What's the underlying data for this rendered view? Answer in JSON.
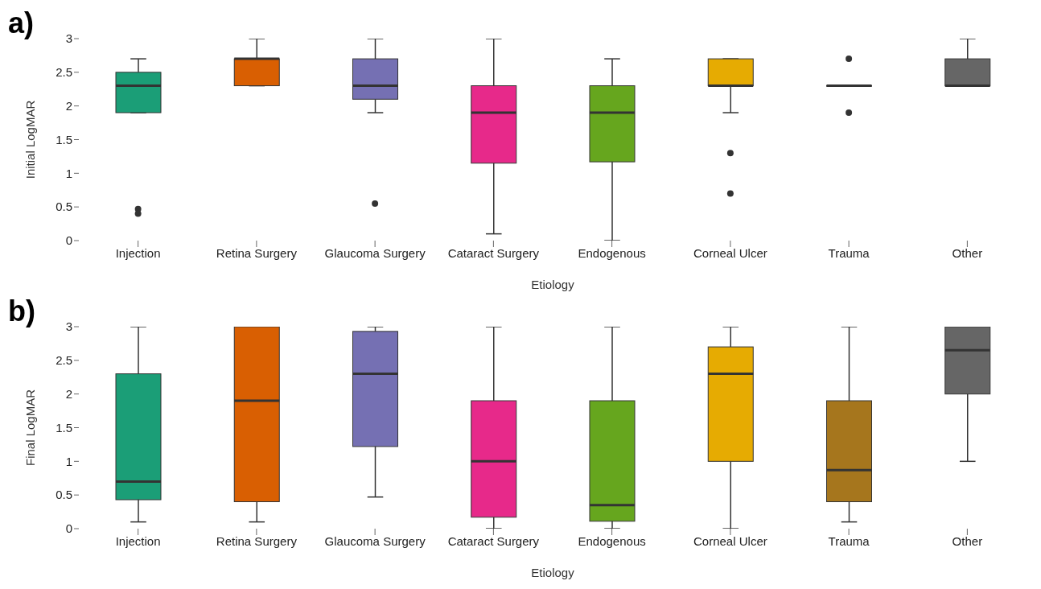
{
  "chart_data": [
    {
      "type": "box",
      "title": "a)",
      "xlabel": "Etiology",
      "ylabel": "Initial LogMAR",
      "categories": [
        "Injection",
        "Retina Surgery",
        "Glaucoma Surgery",
        "Cataract Surgery",
        "Endogenous",
        "Corneal Ulcer",
        "Trauma",
        "Other"
      ],
      "colors": [
        "#1b9e77",
        "#d95f02",
        "#7570b3",
        "#e7298a",
        "#66a61e",
        "#e6ab02",
        "#a6761d",
        "#666666"
      ],
      "ylim": [
        0,
        3
      ],
      "yticks": [
        0,
        0.5,
        1,
        1.5,
        2,
        2.5,
        3
      ],
      "boxes": [
        {
          "low": 1.9,
          "q1": 1.9,
          "median": 2.3,
          "q3": 2.5,
          "high": 2.7,
          "outliers": [
            0.47,
            0.4
          ]
        },
        {
          "low": 2.3,
          "q1": 2.3,
          "median": 2.7,
          "q3": 2.7,
          "high": 3
        },
        {
          "low": 1.9,
          "q1": 2.1,
          "median": 2.3,
          "q3": 2.7,
          "high": 3,
          "outliers": [
            0.55
          ]
        },
        {
          "low": 0.1,
          "q1": 1.15,
          "median": 1.9,
          "q3": 2.3,
          "high": 3
        },
        {
          "low": 0,
          "q1": 1.17,
          "median": 1.9,
          "q3": 2.3,
          "high": 2.7
        },
        {
          "low": 1.9,
          "q1": 2.3,
          "median": 2.3,
          "q3": 2.7,
          "high": 2.7,
          "outliers": [
            1.3,
            0.7
          ]
        },
        {
          "low": 2.3,
          "q1": 2.3,
          "median": 2.3,
          "q3": 2.3,
          "high": 2.3,
          "outliers": [
            2.7,
            1.9
          ]
        },
        {
          "low": 2.3,
          "q1": 2.3,
          "median": 2.3,
          "q3": 2.7,
          "high": 3
        }
      ]
    },
    {
      "type": "box",
      "title": "b)",
      "xlabel": "Etiology",
      "ylabel": "Final LogMAR",
      "categories": [
        "Injection",
        "Retina Surgery",
        "Glaucoma Surgery",
        "Cataract Surgery",
        "Endogenous",
        "Corneal Ulcer",
        "Trauma",
        "Other"
      ],
      "colors": [
        "#1b9e77",
        "#d95f02",
        "#7570b3",
        "#e7298a",
        "#66a61e",
        "#e6ab02",
        "#a6761d",
        "#666666"
      ],
      "ylim": [
        0,
        3
      ],
      "yticks": [
        0,
        0.5,
        1,
        1.5,
        2,
        2.5,
        3
      ],
      "boxes": [
        {
          "low": 0.1,
          "q1": 0.43,
          "median": 0.7,
          "q3": 2.3,
          "high": 3
        },
        {
          "low": 0.1,
          "q1": 0.4,
          "median": 1.9,
          "q3": 3,
          "high": 3
        },
        {
          "low": 0.47,
          "q1": 1.22,
          "median": 2.3,
          "q3": 2.93,
          "high": 3
        },
        {
          "low": 0,
          "q1": 0.17,
          "median": 1,
          "q3": 1.9,
          "high": 3
        },
        {
          "low": 0,
          "q1": 0.11,
          "median": 0.35,
          "q3": 1.9,
          "high": 3
        },
        {
          "low": 0,
          "q1": 1,
          "median": 2.3,
          "q3": 2.7,
          "high": 3
        },
        {
          "low": 0.1,
          "q1": 0.4,
          "median": 0.87,
          "q3": 1.9,
          "high": 3
        },
        {
          "low": 1,
          "q1": 2,
          "median": 2.65,
          "q3": 3,
          "high": 3
        }
      ]
    }
  ]
}
